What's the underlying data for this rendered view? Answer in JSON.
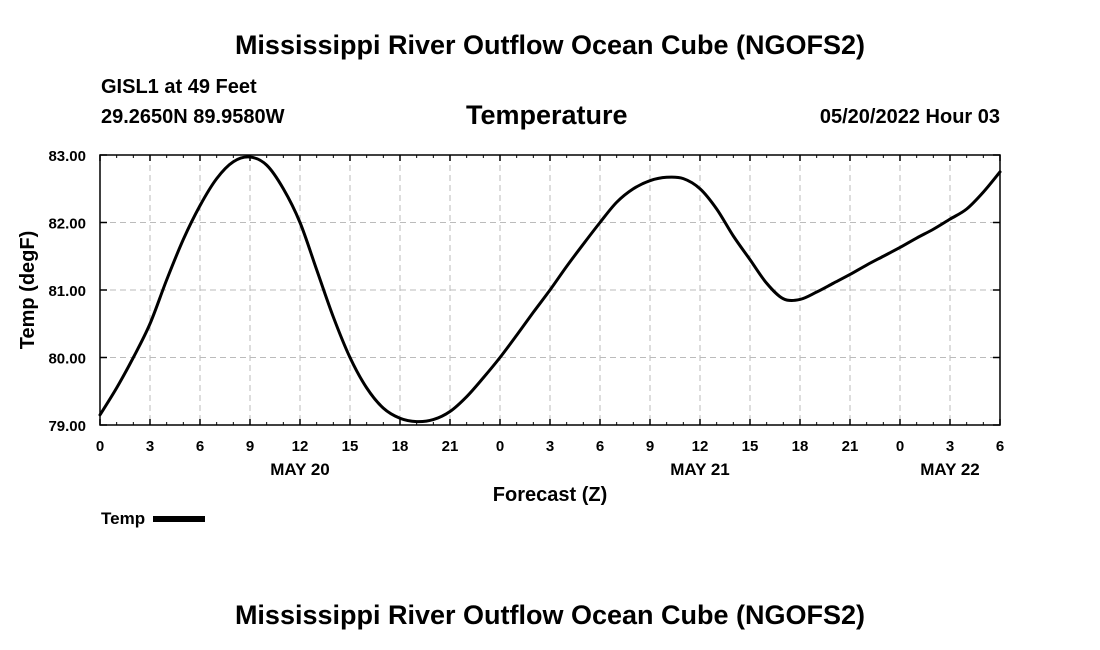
{
  "header": {
    "title": "Mississippi River Outflow Ocean Cube (NGOFS2)",
    "station": "GISL1 at 49 Feet",
    "coordinates": "29.2650N  89.9580W",
    "datetime": "05/20/2022 Hour 03",
    "footer_title": "Mississippi River Outflow Ocean Cube (NGOFS2)"
  },
  "chart_data": {
    "type": "line",
    "title": "Temperature",
    "xlabel": "Forecast (Z)",
    "ylabel": "Temp (degF)",
    "xlim": [
      0,
      54
    ],
    "ylim": [
      79.0,
      83.0
    ],
    "y_ticks": [
      "79.00",
      "80.00",
      "81.00",
      "82.00",
      "83.00"
    ],
    "y_tick_values": [
      79,
      80,
      81,
      82,
      83
    ],
    "x_tick_values": [
      0,
      3,
      6,
      9,
      12,
      15,
      18,
      21,
      24,
      27,
      30,
      33,
      36,
      39,
      42,
      45,
      48,
      51,
      54
    ],
    "x_tick_labels": [
      "0",
      "3",
      "6",
      "9",
      "12",
      "15",
      "18",
      "21",
      "0",
      "3",
      "6",
      "9",
      "12",
      "15",
      "18",
      "21",
      "0",
      "3",
      "6"
    ],
    "date_labels": [
      {
        "text": "MAY 20",
        "hour": 12
      },
      {
        "text": "MAY 21",
        "hour": 36
      },
      {
        "text": "MAY 22",
        "hour": 51
      }
    ],
    "grid": true,
    "legend": {
      "label": "Temp",
      "position": "bottom-left"
    },
    "series": [
      {
        "name": "Temp",
        "x": [
          0,
          1,
          2,
          3,
          4,
          5,
          6,
          7,
          8,
          9,
          10,
          11,
          12,
          13,
          14,
          15,
          16,
          17,
          18,
          19,
          20,
          21,
          22,
          23,
          24,
          25,
          26,
          27,
          28,
          29,
          30,
          31,
          32,
          33,
          34,
          35,
          36,
          37,
          38,
          39,
          40,
          41,
          42,
          43,
          44,
          45,
          46,
          47,
          48,
          49,
          50,
          51,
          52,
          53,
          54
        ],
        "values": [
          79.15,
          79.55,
          80.0,
          80.5,
          81.15,
          81.75,
          82.25,
          82.65,
          82.9,
          82.97,
          82.85,
          82.5,
          82.0,
          81.3,
          80.6,
          80.0,
          79.55,
          79.25,
          79.1,
          79.05,
          79.08,
          79.2,
          79.42,
          79.7,
          80.0,
          80.33,
          80.67,
          81.0,
          81.35,
          81.68,
          82.0,
          82.3,
          82.5,
          82.62,
          82.67,
          82.65,
          82.5,
          82.2,
          81.8,
          81.45,
          81.1,
          80.87,
          80.86,
          80.97,
          81.1,
          81.23,
          81.37,
          81.5,
          81.63,
          81.77,
          81.9,
          82.05,
          82.2,
          82.45,
          82.75
        ]
      }
    ]
  }
}
